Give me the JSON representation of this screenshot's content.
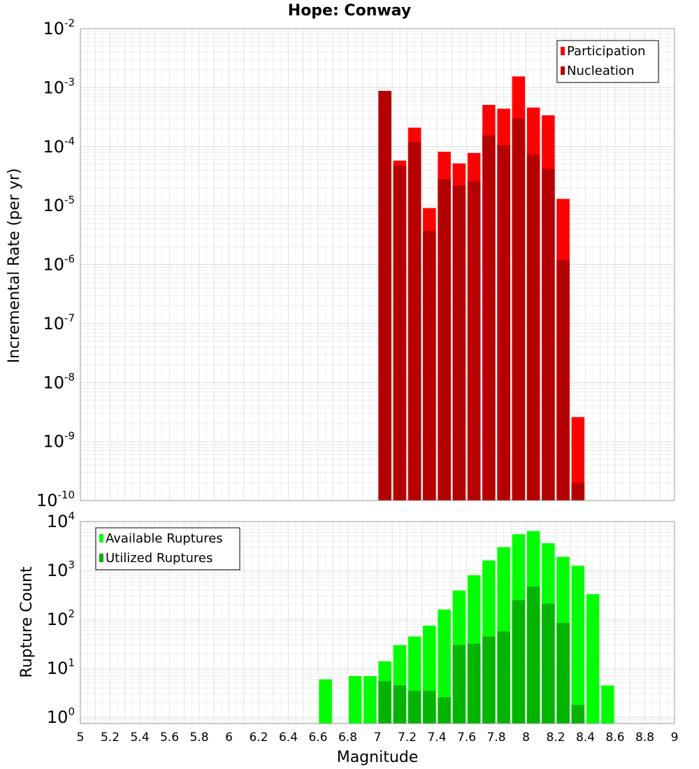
{
  "chart_data": [
    {
      "type": "bar",
      "title": "Hope: Conway",
      "ylabel": "Incremental Rate (per yr)",
      "xlabel": "",
      "yscale": "log",
      "ylim": [
        1e-10,
        0.01
      ],
      "xlim": [
        5,
        9
      ],
      "y_ticks": [
        {
          "base": "10",
          "exp": "-10"
        },
        {
          "base": "10",
          "exp": "-9"
        },
        {
          "base": "10",
          "exp": "-8"
        },
        {
          "base": "10",
          "exp": "-7"
        },
        {
          "base": "10",
          "exp": "-6"
        },
        {
          "base": "10",
          "exp": "-5"
        },
        {
          "base": "10",
          "exp": "-4"
        },
        {
          "base": "10",
          "exp": "-3"
        },
        {
          "base": "10",
          "exp": "-2"
        }
      ],
      "grid": true,
      "legend_position": "top-right",
      "x": [
        7.05,
        7.15,
        7.25,
        7.35,
        7.45,
        7.55,
        7.65,
        7.75,
        7.85,
        7.95,
        8.05,
        8.15,
        8.25,
        8.35
      ],
      "series": [
        {
          "name": "Participation",
          "color": "#ff0000",
          "values": [
            0.00088,
            5.8e-05,
            0.00021,
            9.1e-06,
            8.2e-05,
            5.2e-05,
            7.8e-05,
            0.00051,
            0.00044,
            0.00155,
            0.00046,
            0.00034,
            1.3e-05,
            2.6e-09
          ]
        },
        {
          "name": "Nucleation",
          "color": "#b40000",
          "values": [
            0.00088,
            4.8e-05,
            0.00012,
            3.7e-06,
            2.8e-05,
            2.2e-05,
            2.6e-05,
            0.000155,
            0.000105,
            0.0003,
            7.3e-05,
            4.2e-05,
            1.2e-06,
            2e-10
          ]
        }
      ]
    },
    {
      "type": "bar",
      "title": "",
      "ylabel": "Rupture Count",
      "xlabel": "Magnitude",
      "yscale": "log",
      "ylim": [
        0.75,
        10000
      ],
      "xlim": [
        5,
        9
      ],
      "x_ticks": [
        "5",
        "5.2",
        "5.4",
        "5.6",
        "5.8",
        "6",
        "6.2",
        "6.4",
        "6.6",
        "6.8",
        "7",
        "7.2",
        "7.4",
        "7.6",
        "7.8",
        "8",
        "8.2",
        "8.4",
        "8.6",
        "8.8",
        "9"
      ],
      "y_ticks": [
        {
          "base": "10",
          "exp": "0"
        },
        {
          "base": "10",
          "exp": "1"
        },
        {
          "base": "10",
          "exp": "2"
        },
        {
          "base": "10",
          "exp": "3"
        },
        {
          "base": "10",
          "exp": "4"
        }
      ],
      "grid": true,
      "legend_position": "top-left",
      "x": [
        6.65,
        6.85,
        6.95,
        7.05,
        7.15,
        7.25,
        7.35,
        7.45,
        7.55,
        7.65,
        7.75,
        7.85,
        7.95,
        8.05,
        8.15,
        8.25,
        8.35,
        8.45,
        8.55
      ],
      "series": [
        {
          "name": "Available Ruptures",
          "color": "#00ff00",
          "values": [
            6,
            7,
            7,
            14,
            30,
            45,
            75,
            160,
            390,
            800,
            1600,
            3000,
            5500,
            6400,
            3600,
            1900,
            1250,
            330,
            4.5
          ]
        },
        {
          "name": "Utilized Ruptures",
          "color": "#00b400",
          "values": [
            0,
            0,
            0,
            5.5,
            4.5,
            3.5,
            3.5,
            2.6,
            30,
            32,
            45,
            57,
            250,
            470,
            210,
            85,
            1.8,
            0,
            0
          ]
        }
      ]
    }
  ]
}
